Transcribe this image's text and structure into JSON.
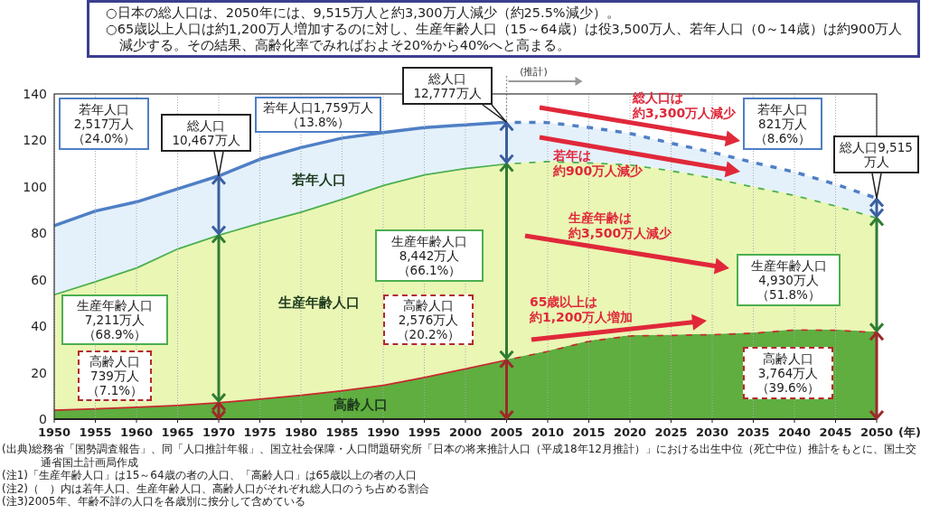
{
  "chart_data": {
    "type": "area",
    "stacked": true,
    "title": "○日本の総人口は、2050年には、9,515万人と約3,300万人減少（約25.5%減少）。",
    "subtitle": "○65歳以上人口は約1,200万人増加するのに対し、生産年齢人口（15～64歳）は役3,500万人、若年人口（0～14歳）は約900万人減少する。その結果、高齢化率でみればおよそ20%から40%へと高まる。",
    "xlabel": "(年)",
    "x": [
      1950,
      1955,
      1960,
      1965,
      1970,
      1975,
      1980,
      1985,
      1990,
      1995,
      2000,
      2005,
      2010,
      2015,
      2020,
      2025,
      2030,
      2035,
      2040,
      2045,
      2050
    ],
    "xlim": [
      1950,
      2050
    ],
    "xticks": [
      1950,
      1955,
      1960,
      1965,
      1970,
      1975,
      1980,
      1985,
      1990,
      1995,
      2000,
      2005,
      2010,
      2015,
      2020,
      2025,
      2030,
      2035,
      2040,
      2045,
      2050
    ],
    "ylim": [
      0,
      140
    ],
    "yticks": [
      0,
      20,
      40,
      60,
      80,
      100,
      120,
      140
    ],
    "grid": "x",
    "series": [
      {
        "name": "高齢人口",
        "color": "#5fae3f",
        "values": [
          4.2,
          4.8,
          5.4,
          6.2,
          7.4,
          8.9,
          10.6,
          12.5,
          14.9,
          18.3,
          22.0,
          25.8,
          29.5,
          33.8,
          36.2,
          36.4,
          36.7,
          37.3,
          38.7,
          38.6,
          37.6
        ]
      },
      {
        "name": "生産年齢人口",
        "color": "#eaf6b4",
        "values": [
          49.7,
          54.7,
          60.0,
          67.4,
          72.1,
          75.8,
          78.8,
          82.5,
          86.0,
          87.2,
          86.2,
          84.4,
          81.7,
          76.8,
          73.6,
          70.8,
          67.4,
          62.9,
          57.9,
          53.5,
          49.3
        ]
      },
      {
        "name": "若年人口",
        "color": "#e4f1fb",
        "values": [
          29.4,
          30.1,
          28.1,
          25.5,
          25.2,
          27.2,
          27.5,
          26.0,
          22.5,
          20.0,
          18.5,
          17.6,
          16.5,
          15.0,
          13.2,
          11.6,
          10.8,
          10.3,
          9.8,
          9.0,
          8.2
        ]
      }
    ],
    "ref_lines": [
      {
        "axis": "x",
        "value": 2005,
        "label": "(推計)"
      }
    ],
    "annotations": [
      {
        "text": "総人口10,467万人",
        "x": 1970,
        "y": 104.7
      },
      "若年人口2,517万人（24.0%）",
      "生産年齢人口7,211万人（68.9%）",
      "高齢人口739万人（7.1%）",
      {
        "text": "総人口12,777万人",
        "x": 2005,
        "y": 127.8
      },
      "若年人口1,759万人（13.8%）",
      "生産年齢人口8,442万人（66.1%）",
      "高齢人口2,576万人（20.2%）",
      {
        "text": "総人口9,515万人",
        "x": 2050,
        "y": 95.1
      },
      "若年人口821万人（8.6%）",
      "生産年齢人口4,930万人（51.8%）",
      "高齢人口3,764万人（39.6%）",
      "総人口は",
      "約3,300万人減少",
      "若年は",
      "約900万人減少",
      "生産年齢は",
      "約3,500万人減少",
      "65歳以上は",
      "約1,200万人増加",
      "(出典)総務省「国勢調査報告」、同「人口推計年報」、国立社会保障・人口問題研究所「日本の将来推計人口（平成18年12月推計）」における出生中位（死亡中位）推計をもとに、国土交通省国土計画局作成",
      "(注1)「生産年齢人口」は15～64歳の者の人口、「高齢人口」は65歳以上の者の人口",
      "(注2)（　）内は若年人口、生産年齢人口、高齢人口がそれぞれ総人口のうち占める割合",
      "(注3)2005年、年齢不詳の人口を各歳別に按分して含めている"
    ]
  }
}
